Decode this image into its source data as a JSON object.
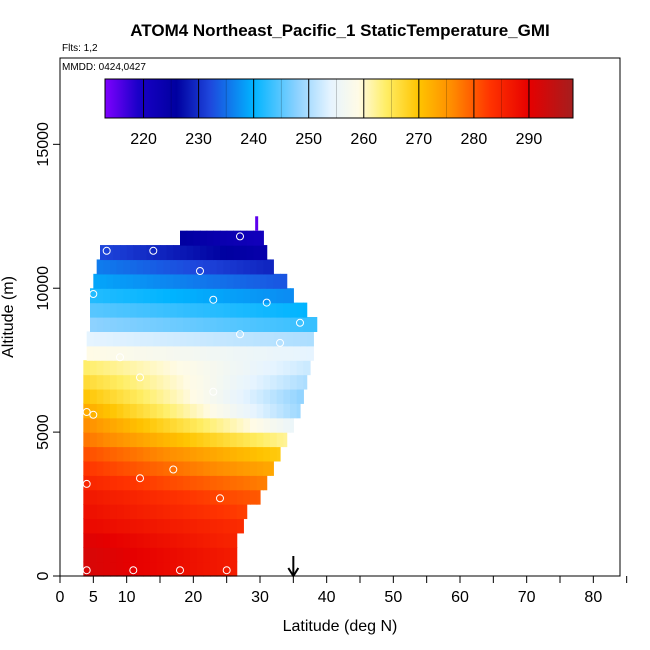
{
  "chart_data": {
    "type": "heatmap",
    "title": "ATOM4 Northeast_Pacific_1 StaticTemperature_GMI",
    "flights_note": "Flts: 1,2",
    "date_note": "MMDD: 0424,0427",
    "xlabel": "Latitude (deg N)",
    "ylabel": "Altitude (m)",
    "xlim": [
      0,
      84
    ],
    "ylim": [
      0,
      18000
    ],
    "x_ticks": [
      0,
      5,
      10,
      20,
      30,
      40,
      50,
      60,
      70,
      80
    ],
    "x_minor_ticks": [
      15,
      25,
      35,
      45,
      55,
      65,
      75,
      85
    ],
    "y_ticks": [
      0,
      5000,
      10000,
      15000
    ],
    "colorbar": {
      "vmin": 213,
      "vmax": 298,
      "ticks": [
        220,
        230,
        240,
        250,
        260,
        270,
        280,
        290
      ],
      "stops": [
        {
          "v": 213,
          "c": "#7f00ff"
        },
        {
          "v": 219,
          "c": "#1a00c8"
        },
        {
          "v": 226,
          "c": "#0000a0"
        },
        {
          "v": 232,
          "c": "#1e46dc"
        },
        {
          "v": 240,
          "c": "#00b4ff"
        },
        {
          "v": 248,
          "c": "#8ed2ff"
        },
        {
          "v": 254,
          "c": "#e6f4ff"
        },
        {
          "v": 259,
          "c": "#fffbe6"
        },
        {
          "v": 264,
          "c": "#ffee66"
        },
        {
          "v": 270,
          "c": "#ffc400"
        },
        {
          "v": 276,
          "c": "#ff8c00"
        },
        {
          "v": 283,
          "c": "#ff3300"
        },
        {
          "v": 290,
          "c": "#e60000"
        },
        {
          "v": 298,
          "c": "#a51e1e"
        }
      ]
    },
    "field": {
      "alt_step": 500,
      "rows": [
        {
          "alt": 0,
          "x0": 3.5,
          "x1": 26.5,
          "t0": 292,
          "t1": 286
        },
        {
          "alt": 500,
          "x0": 3.5,
          "x1": 26.5,
          "t0": 292,
          "t1": 286
        },
        {
          "alt": 1000,
          "x0": 3.5,
          "x1": 26.5,
          "t0": 291,
          "t1": 285
        },
        {
          "alt": 1500,
          "x0": 3.5,
          "x1": 27.5,
          "t0": 289,
          "t1": 284
        },
        {
          "alt": 2000,
          "x0": 3.5,
          "x1": 28.0,
          "t0": 288,
          "t1": 282
        },
        {
          "alt": 2500,
          "x0": 3.5,
          "x1": 30.0,
          "t0": 287,
          "t1": 280
        },
        {
          "alt": 3000,
          "x0": 3.5,
          "x1": 31.0,
          "t0": 285,
          "t1": 277
        },
        {
          "alt": 3500,
          "x0": 3.5,
          "x1": 32.0,
          "t0": 283,
          "t1": 273
        },
        {
          "alt": 4000,
          "x0": 3.5,
          "x1": 33.0,
          "t0": 281,
          "t1": 269
        },
        {
          "alt": 4500,
          "x0": 3.5,
          "x1": 34.0,
          "t0": 278,
          "t1": 262
        },
        {
          "alt": 5000,
          "x0": 3.5,
          "x1": 35.0,
          "t0": 276,
          "t1": 255
        },
        {
          "alt": 5500,
          "x0": 3.5,
          "x1": 36.0,
          "t0": 273,
          "t1": 249
        },
        {
          "alt": 6000,
          "x0": 3.5,
          "x1": 36.5,
          "t0": 270,
          "t1": 248
        },
        {
          "alt": 6500,
          "x0": 3.5,
          "x1": 37.0,
          "t0": 267,
          "t1": 250
        },
        {
          "alt": 7000,
          "x0": 3.5,
          "x1": 37.5,
          "t0": 264,
          "t1": 252
        },
        {
          "alt": 7500,
          "x0": 4.0,
          "x1": 38.0,
          "t0": 259,
          "t1": 254
        },
        {
          "alt": 8000,
          "x0": 4.0,
          "x1": 38.0,
          "t0": 254,
          "t1": 250
        },
        {
          "alt": 8500,
          "x0": 4.5,
          "x1": 38.5,
          "t0": 248,
          "t1": 243
        },
        {
          "alt": 9000,
          "x0": 4.5,
          "x1": 37.0,
          "t0": 245,
          "t1": 240
        },
        {
          "alt": 9500,
          "x0": 4.5,
          "x1": 35.0,
          "t0": 242,
          "t1": 237
        },
        {
          "alt": 10000,
          "x0": 5.0,
          "x1": 34.0,
          "t0": 239,
          "t1": 233
        },
        {
          "alt": 10500,
          "x0": 5.5,
          "x1": 32.0,
          "t0": 236,
          "t1": 229
        },
        {
          "alt": 11000,
          "x0": 6.0,
          "x1": 31.0,
          "t0": 232,
          "t1": 224
        },
        {
          "alt": 11500,
          "x0": 18.0,
          "x1": 30.5,
          "t0": 226,
          "t1": 221
        }
      ],
      "spike": {
        "x": 29.5,
        "alt0": 12000,
        "alt1": 12500,
        "t": 215
      }
    },
    "points": [
      {
        "x": 7,
        "y": 11300
      },
      {
        "x": 14,
        "y": 11300
      },
      {
        "x": 27,
        "y": 11800
      },
      {
        "x": 21,
        "y": 10600
      },
      {
        "x": 5,
        "y": 9800
      },
      {
        "x": 23,
        "y": 9600
      },
      {
        "x": 31,
        "y": 9500
      },
      {
        "x": 36,
        "y": 8800
      },
      {
        "x": 27,
        "y": 8400
      },
      {
        "x": 33,
        "y": 8100
      },
      {
        "x": 9,
        "y": 7600
      },
      {
        "x": 12,
        "y": 6900
      },
      {
        "x": 23,
        "y": 6400
      },
      {
        "x": 38,
        "y": 5900
      },
      {
        "x": 4,
        "y": 5700
      },
      {
        "x": 5,
        "y": 5600
      },
      {
        "x": 17,
        "y": 3700
      },
      {
        "x": 12,
        "y": 3400
      },
      {
        "x": 4,
        "y": 3200
      },
      {
        "x": 24,
        "y": 2700
      },
      {
        "x": 4,
        "y": 200
      },
      {
        "x": 11,
        "y": 200
      },
      {
        "x": 18,
        "y": 200
      },
      {
        "x": 25,
        "y": 200
      }
    ],
    "marker_x": 35
  }
}
